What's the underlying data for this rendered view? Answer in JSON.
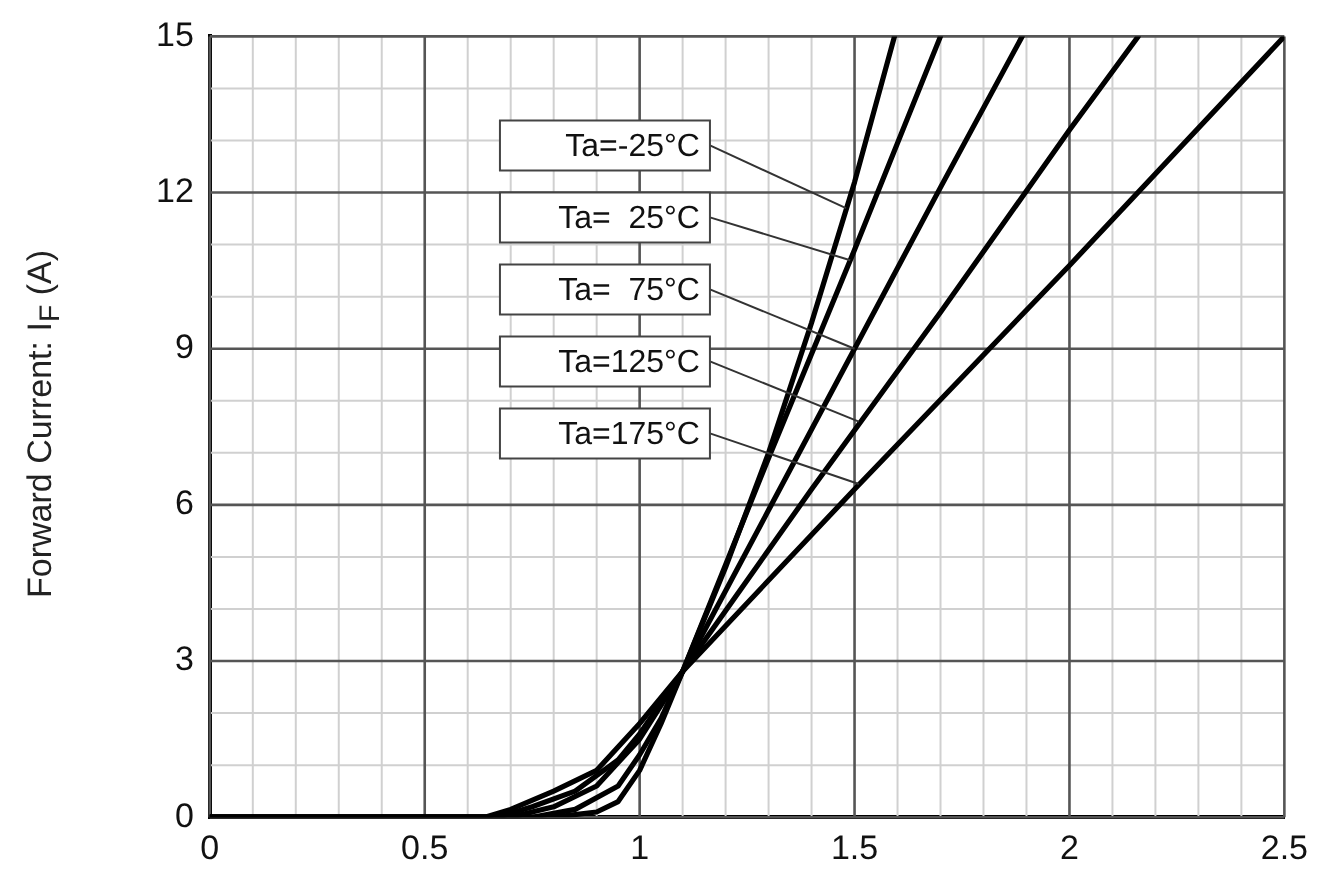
{
  "chart_data": {
    "type": "line",
    "ylabel": "Forward Current: I$_{F}$ (A)",
    "xlim": [
      0,
      2.5
    ],
    "xticks": [
      0,
      0.5,
      1,
      1.5,
      2,
      2.5
    ],
    "ylim": [
      0,
      15
    ],
    "yticks": [
      0,
      3,
      6,
      9,
      12,
      15
    ],
    "grid": true,
    "legend": false,
    "marker": "none",
    "line_style": "solid",
    "annotations": [
      {
        "text": "Ta=-25°C",
        "x": 1.48,
        "y": 11.7
      },
      {
        "text": "Ta=  25°C",
        "x": 1.49,
        "y": 10.7
      },
      {
        "text": "Ta=  75°C",
        "x": 1.5,
        "y": 9.0
      },
      {
        "text": "Ta=125°C",
        "x": 1.51,
        "y": 7.6
      },
      {
        "text": "Ta=175°C",
        "x": 1.51,
        "y": 6.4
      }
    ],
    "series": [
      {
        "color": "#000000",
        "x": [
          0,
          0.8,
          0.9,
          0.95,
          1.0,
          1.05,
          1.1,
          1.2,
          1.3,
          1.4,
          1.5,
          1.593
        ],
        "values": [
          0,
          0,
          0.1,
          0.3,
          0.9,
          1.8,
          2.8,
          4.8,
          7.0,
          9.5,
          12.2,
          15
        ]
      },
      {
        "color": "#000000",
        "x": [
          0,
          0.75,
          0.85,
          0.95,
          1.0,
          1.05,
          1.1,
          1.3,
          1.5,
          1.7
        ],
        "values": [
          0,
          0,
          0.15,
          0.6,
          1.2,
          1.9,
          2.8,
          6.9,
          10.9,
          15
        ]
      },
      {
        "color": "#000000",
        "x": [
          0,
          0.7,
          0.8,
          0.9,
          1.0,
          1.1,
          1.3,
          1.5,
          1.7,
          1.89
        ],
        "values": [
          0,
          0,
          0.2,
          0.6,
          1.5,
          2.8,
          5.9,
          9.0,
          12.1,
          15
        ]
      },
      {
        "color": "#000000",
        "x": [
          0,
          0.67,
          0.75,
          0.85,
          0.95,
          1.0,
          1.1,
          1.4,
          1.7,
          2.0,
          2.16
        ],
        "values": [
          0,
          0,
          0.2,
          0.5,
          1.1,
          1.6,
          2.8,
          6.3,
          9.7,
          13.2,
          15
        ]
      },
      {
        "color": "#000000",
        "x": [
          0,
          0.64,
          0.7,
          0.8,
          0.9,
          1.0,
          1.1,
          1.5,
          2.0,
          2.5
        ],
        "values": [
          0,
          0,
          0.15,
          0.5,
          0.9,
          1.8,
          2.8,
          6.3,
          10.6,
          15
        ]
      }
    ]
  }
}
